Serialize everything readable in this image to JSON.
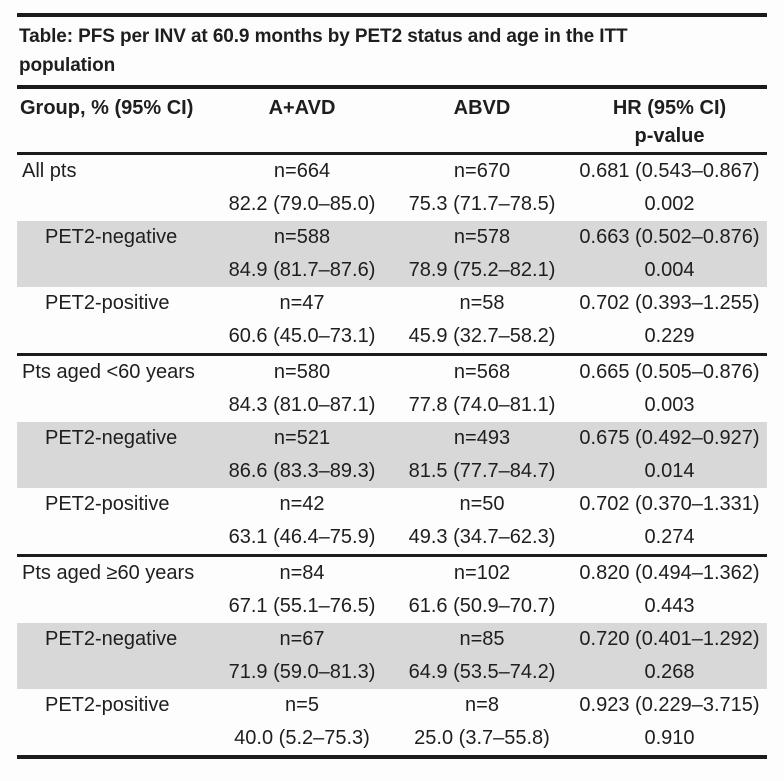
{
  "document": {
    "title": {
      "line1": "Table: PFS per INV at 60.9 months by PET2 status and age in the ITT",
      "line2": "population",
      "full": "Table: PFS per INV at 60.9 months by PET2 status and age in the ITT population"
    },
    "header": {
      "group_col": "Group, % (95% CI)",
      "aavd_col": "A+AVD",
      "abvd_col": "ABVD",
      "hr_col": "HR (95% CI)",
      "hr_col_line2": "p-value"
    },
    "colors": {
      "shaded_row": "#d8d8d8",
      "rule": "#1c1c1c",
      "text": "#1e1e1e",
      "background": "#fdfdfd"
    },
    "sections": [
      {
        "rows": [
          {
            "group": "All pts",
            "aavd_n": "n=664",
            "abvd_n": "n=670",
            "hr_ci": "0.681 (0.543–0.867)",
            "aavd_pct": "82.2 (79.0–85.0)",
            "abvd_pct": "75.3 (71.7–78.5)",
            "p_value": "0.002"
          },
          {
            "group": "PET2-negative",
            "aavd_n": "n=588",
            "abvd_n": "n=578",
            "hr_ci": "0.663 (0.502–0.876)",
            "aavd_pct": "84.9 (81.7–87.6)",
            "abvd_pct": "78.9 (75.2–82.1)",
            "p_value": "0.004"
          },
          {
            "group": "PET2-positive",
            "aavd_n": "n=47",
            "abvd_n": "n=58",
            "hr_ci": "0.702 (0.393–1.255)",
            "aavd_pct": "60.6 (45.0–73.1)",
            "abvd_pct": "45.9 (32.7–58.2)",
            "p_value": "0.229"
          }
        ]
      },
      {
        "rows": [
          {
            "group": "Pts aged <60 years",
            "aavd_n": "n=580",
            "abvd_n": "n=568",
            "hr_ci": "0.665 (0.505–0.876)",
            "aavd_pct": "84.3 (81.0–87.1)",
            "abvd_pct": "77.8 (74.0–81.1)",
            "p_value": "0.003"
          },
          {
            "group": "PET2-negative",
            "aavd_n": "n=521",
            "abvd_n": "n=493",
            "hr_ci": "0.675 (0.492–0.927)",
            "aavd_pct": "86.6 (83.3–89.3)",
            "abvd_pct": "81.5 (77.7–84.7)",
            "p_value": "0.014"
          },
          {
            "group": "PET2-positive",
            "aavd_n": "n=42",
            "abvd_n": "n=50",
            "hr_ci": "0.702 (0.370–1.331)",
            "aavd_pct": "63.1 (46.4–75.9)",
            "abvd_pct": "49.3 (34.7–62.3)",
            "p_value": "0.274"
          }
        ]
      },
      {
        "rows": [
          {
            "group": "Pts aged ≥60 years",
            "aavd_n": "n=84",
            "abvd_n": "n=102",
            "hr_ci": "0.820 (0.494–1.362)",
            "aavd_pct": "67.1 (55.1–76.5)",
            "abvd_pct": "61.6 (50.9–70.7)",
            "p_value": "0.443"
          },
          {
            "group": "PET2-negative",
            "aavd_n": "n=67",
            "abvd_n": "n=85",
            "hr_ci": "0.720 (0.401–1.292)",
            "aavd_pct": "71.9 (59.0–81.3)",
            "abvd_pct": "64.9 (53.5–74.2)",
            "p_value": "0.268"
          },
          {
            "group": "PET2-positive",
            "aavd_n": "n=5",
            "abvd_n": "n=8",
            "hr_ci": "0.923 (0.229–3.715)",
            "aavd_pct": "40.0 (5.2–75.3)",
            "abvd_pct": "25.0 (3.7–55.8)",
            "p_value": "0.910"
          }
        ]
      }
    ]
  }
}
